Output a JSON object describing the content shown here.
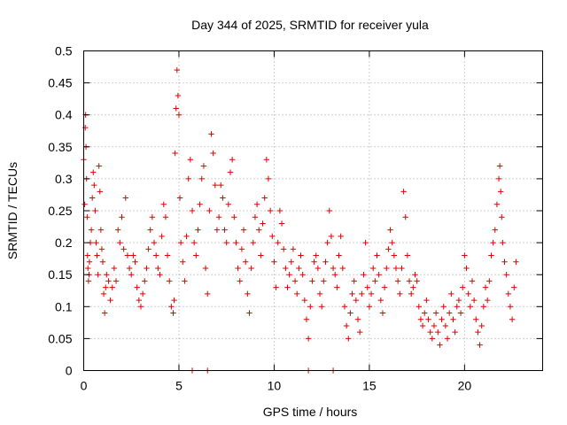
{
  "chart_data": {
    "type": "scatter",
    "title": "Day 344 of 2025, SRMTID for receiver yula",
    "xlabel": "GPS time / hours",
    "ylabel": "SRMTID / TECUs",
    "xlim": [
      0,
      24.1
    ],
    "ylim": [
      0,
      0.5
    ],
    "xticks": [
      0,
      5,
      10,
      15,
      20
    ],
    "xtick_labels": [
      "0",
      "5",
      "10",
      "15",
      "20"
    ],
    "yticks": [
      0,
      0.05,
      0.1,
      0.15,
      0.2,
      0.25,
      0.3,
      0.35,
      0.4,
      0.45,
      0.5
    ],
    "ytick_labels": [
      "0",
      "0.05",
      "0.1",
      "0.15",
      "0.2",
      "0.25",
      "0.3",
      "0.35",
      "0.4",
      "0.45",
      "0.5"
    ],
    "grid": true,
    "marker": "+",
    "color": "#e00000",
    "series": [
      {
        "name": "SRMTID",
        "points": [
          [
            0.0,
            0.33
          ],
          [
            0.05,
            0.26
          ],
          [
            0.08,
            0.38
          ],
          [
            0.1,
            0.4
          ],
          [
            0.12,
            0.35
          ],
          [
            0.15,
            0.3
          ],
          [
            0.18,
            0.24
          ],
          [
            0.2,
            0.18
          ],
          [
            0.22,
            0.16
          ],
          [
            0.25,
            0.14
          ],
          [
            0.28,
            0.15
          ],
          [
            0.3,
            0.17
          ],
          [
            0.35,
            0.2
          ],
          [
            0.4,
            0.22
          ],
          [
            0.45,
            0.27
          ],
          [
            0.5,
            0.31
          ],
          [
            0.55,
            0.29
          ],
          [
            0.6,
            0.25
          ],
          [
            0.65,
            0.2
          ],
          [
            0.7,
            0.18
          ],
          [
            0.75,
            0.15
          ],
          [
            0.8,
            0.32
          ],
          [
            0.85,
            0.28
          ],
          [
            0.9,
            0.22
          ],
          [
            0.95,
            0.19
          ],
          [
            1.0,
            0.17
          ],
          [
            1.05,
            0.12
          ],
          [
            1.1,
            0.09
          ],
          [
            1.15,
            0.13
          ],
          [
            1.2,
            0.15
          ],
          [
            1.3,
            0.14
          ],
          [
            1.4,
            0.11
          ],
          [
            1.5,
            0.13
          ],
          [
            1.6,
            0.16
          ],
          [
            1.7,
            0.14
          ],
          [
            1.8,
            0.22
          ],
          [
            1.9,
            0.2
          ],
          [
            2.0,
            0.24
          ],
          [
            2.1,
            0.19
          ],
          [
            2.2,
            0.27
          ],
          [
            2.3,
            0.18
          ],
          [
            2.4,
            0.16
          ],
          [
            2.5,
            0.15
          ],
          [
            2.6,
            0.18
          ],
          [
            2.7,
            0.17
          ],
          [
            2.8,
            0.13
          ],
          [
            2.9,
            0.11
          ],
          [
            3.0,
            0.1
          ],
          [
            3.1,
            0.12
          ],
          [
            3.2,
            0.14
          ],
          [
            3.3,
            0.16
          ],
          [
            3.4,
            0.19
          ],
          [
            3.5,
            0.22
          ],
          [
            3.6,
            0.24
          ],
          [
            3.7,
            0.2
          ],
          [
            3.8,
            0.18
          ],
          [
            3.9,
            0.16
          ],
          [
            4.0,
            0.15
          ],
          [
            4.1,
            0.21
          ],
          [
            4.2,
            0.26
          ],
          [
            4.3,
            0.24
          ],
          [
            4.4,
            0.18
          ],
          [
            4.5,
            0.14
          ],
          [
            4.6,
            0.1
          ],
          [
            4.7,
            0.09
          ],
          [
            4.75,
            0.11
          ],
          [
            4.8,
            0.34
          ],
          [
            4.85,
            0.41
          ],
          [
            4.9,
            0.47
          ],
          [
            4.95,
            0.43
          ],
          [
            5.0,
            0.4
          ],
          [
            5.05,
            0.27
          ],
          [
            5.1,
            0.2
          ],
          [
            5.2,
            0.17
          ],
          [
            5.3,
            0.14
          ],
          [
            5.4,
            0.21
          ],
          [
            5.5,
            0.3
          ],
          [
            5.6,
            0.33
          ],
          [
            5.7,
            0.25
          ],
          [
            5.8,
            0.2
          ],
          [
            5.9,
            0.18
          ],
          [
            6.0,
            0.22
          ],
          [
            6.1,
            0.26
          ],
          [
            6.2,
            0.3
          ],
          [
            6.3,
            0.32
          ],
          [
            6.4,
            0.16
          ],
          [
            6.5,
            0.12
          ],
          [
            6.6,
            0.25
          ],
          [
            6.7,
            0.37
          ],
          [
            6.8,
            0.34
          ],
          [
            6.9,
            0.29
          ],
          [
            7.0,
            0.22
          ],
          [
            7.1,
            0.24
          ],
          [
            7.2,
            0.29
          ],
          [
            7.3,
            0.27
          ],
          [
            7.4,
            0.22
          ],
          [
            7.5,
            0.2
          ],
          [
            7.6,
            0.26
          ],
          [
            7.7,
            0.31
          ],
          [
            7.8,
            0.33
          ],
          [
            7.9,
            0.24
          ],
          [
            8.0,
            0.2
          ],
          [
            8.1,
            0.16
          ],
          [
            8.2,
            0.14
          ],
          [
            8.3,
            0.19
          ],
          [
            8.4,
            0.22
          ],
          [
            8.5,
            0.17
          ],
          [
            8.6,
            0.12
          ],
          [
            8.7,
            0.09
          ],
          [
            8.8,
            0.16
          ],
          [
            8.9,
            0.2
          ],
          [
            9.0,
            0.24
          ],
          [
            9.1,
            0.26
          ],
          [
            9.2,
            0.22
          ],
          [
            9.3,
            0.18
          ],
          [
            9.4,
            0.23
          ],
          [
            9.5,
            0.27
          ],
          [
            9.6,
            0.33
          ],
          [
            9.7,
            0.3
          ],
          [
            9.8,
            0.25
          ],
          [
            9.9,
            0.21
          ],
          [
            10.0,
            0.17
          ],
          [
            10.1,
            0.13
          ],
          [
            10.2,
            0.2
          ],
          [
            10.3,
            0.25
          ],
          [
            10.4,
            0.23
          ],
          [
            10.5,
            0.19
          ],
          [
            10.6,
            0.16
          ],
          [
            10.7,
            0.13
          ],
          [
            10.8,
            0.15
          ],
          [
            10.9,
            0.17
          ],
          [
            11.0,
            0.19
          ],
          [
            11.1,
            0.14
          ],
          [
            11.2,
            0.12
          ],
          [
            11.3,
            0.16
          ],
          [
            11.4,
            0.18
          ],
          [
            11.5,
            0.15
          ],
          [
            11.6,
            0.11
          ],
          [
            11.7,
            0.08
          ],
          [
            11.8,
            0.05
          ],
          [
            11.9,
            0.1
          ],
          [
            12.0,
            0.14
          ],
          [
            12.1,
            0.17
          ],
          [
            12.2,
            0.18
          ],
          [
            12.3,
            0.16
          ],
          [
            12.4,
            0.12
          ],
          [
            12.5,
            0.1
          ],
          [
            12.6,
            0.14
          ],
          [
            12.7,
            0.17
          ],
          [
            12.8,
            0.2
          ],
          [
            12.9,
            0.25
          ],
          [
            13.0,
            0.21
          ],
          [
            13.1,
            0.16
          ],
          [
            13.2,
            0.15
          ],
          [
            13.3,
            0.13
          ],
          [
            13.4,
            0.18
          ],
          [
            13.5,
            0.21
          ],
          [
            13.6,
            0.16
          ],
          [
            13.7,
            0.1
          ],
          [
            13.8,
            0.07
          ],
          [
            13.9,
            0.05
          ],
          [
            14.0,
            0.09
          ],
          [
            14.1,
            0.12
          ],
          [
            14.2,
            0.14
          ],
          [
            14.3,
            0.11
          ],
          [
            14.4,
            0.08
          ],
          [
            14.5,
            0.06
          ],
          [
            14.6,
            0.12
          ],
          [
            14.7,
            0.15
          ],
          [
            14.8,
            0.2
          ],
          [
            14.9,
            0.13
          ],
          [
            15.0,
            0.1
          ],
          [
            15.1,
            0.12
          ],
          [
            15.2,
            0.16
          ],
          [
            15.3,
            0.14
          ],
          [
            15.4,
            0.18
          ],
          [
            15.5,
            0.15
          ],
          [
            15.6,
            0.11
          ],
          [
            15.7,
            0.09
          ],
          [
            15.8,
            0.13
          ],
          [
            15.9,
            0.16
          ],
          [
            16.0,
            0.19
          ],
          [
            16.1,
            0.22
          ],
          [
            16.2,
            0.2
          ],
          [
            16.3,
            0.18
          ],
          [
            16.4,
            0.16
          ],
          [
            16.5,
            0.14
          ],
          [
            16.6,
            0.12
          ],
          [
            16.7,
            0.16
          ],
          [
            16.8,
            0.28
          ],
          [
            16.9,
            0.24
          ],
          [
            17.0,
            0.18
          ],
          [
            17.1,
            0.14
          ],
          [
            17.2,
            0.12
          ],
          [
            17.3,
            0.13
          ],
          [
            17.4,
            0.15
          ],
          [
            17.5,
            0.14
          ],
          [
            17.6,
            0.1
          ],
          [
            17.7,
            0.08
          ],
          [
            17.8,
            0.07
          ],
          [
            17.9,
            0.09
          ],
          [
            18.0,
            0.11
          ],
          [
            18.1,
            0.08
          ],
          [
            18.2,
            0.06
          ],
          [
            18.3,
            0.05
          ],
          [
            18.4,
            0.07
          ],
          [
            18.5,
            0.09
          ],
          [
            18.6,
            0.06
          ],
          [
            18.7,
            0.04
          ],
          [
            18.8,
            0.08
          ],
          [
            18.9,
            0.1
          ],
          [
            19.0,
            0.07
          ],
          [
            19.1,
            0.05
          ],
          [
            19.2,
            0.09
          ],
          [
            19.3,
            0.12
          ],
          [
            19.4,
            0.08
          ],
          [
            19.5,
            0.06
          ],
          [
            19.6,
            0.1
          ],
          [
            19.7,
            0.11
          ],
          [
            19.8,
            0.09
          ],
          [
            19.9,
            0.13
          ],
          [
            20.0,
            0.18
          ],
          [
            20.1,
            0.16
          ],
          [
            20.2,
            0.12
          ],
          [
            20.3,
            0.1
          ],
          [
            20.4,
            0.14
          ],
          [
            20.5,
            0.11
          ],
          [
            20.6,
            0.08
          ],
          [
            20.7,
            0.06
          ],
          [
            20.8,
            0.04
          ],
          [
            20.9,
            0.07
          ],
          [
            21.0,
            0.1
          ],
          [
            21.1,
            0.13
          ],
          [
            21.2,
            0.11
          ],
          [
            21.3,
            0.14
          ],
          [
            21.4,
            0.18
          ],
          [
            21.5,
            0.2
          ],
          [
            21.6,
            0.22
          ],
          [
            21.7,
            0.26
          ],
          [
            21.8,
            0.3
          ],
          [
            21.85,
            0.32
          ],
          [
            21.9,
            0.28
          ],
          [
            21.95,
            0.24
          ],
          [
            22.0,
            0.2
          ],
          [
            22.1,
            0.17
          ],
          [
            22.2,
            0.15
          ],
          [
            22.3,
            0.12
          ],
          [
            22.4,
            0.1
          ],
          [
            22.5,
            0.08
          ],
          [
            22.6,
            0.13
          ],
          [
            22.7,
            0.17
          ],
          [
            5.7,
            0.0
          ],
          [
            6.5,
            0.0
          ],
          [
            11.8,
            0.0
          ],
          [
            13.1,
            0.0
          ]
        ]
      }
    ]
  }
}
